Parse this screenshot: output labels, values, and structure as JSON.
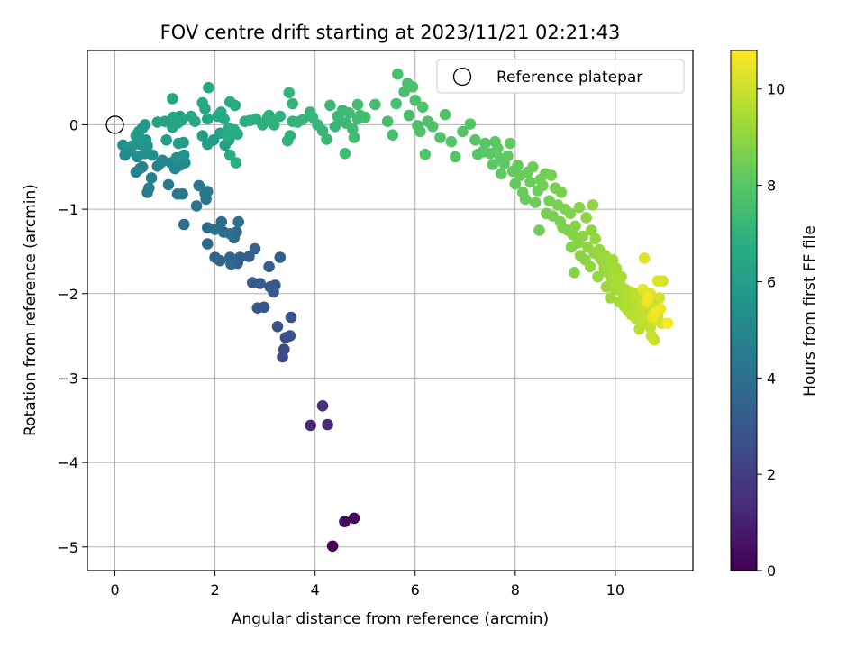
{
  "chart_data": {
    "type": "scatter",
    "title": "FOV centre drift starting at 2023/11/21 02:21:43",
    "xlabel": "Angular distance from reference (arcmin)",
    "ylabel": "Rotation from reference (arcmin)",
    "xlim": [
      -0.55,
      11.55
    ],
    "ylim": [
      -5.28,
      0.88
    ],
    "xticks": [
      0,
      2,
      4,
      6,
      8,
      10
    ],
    "yticks": [
      0,
      -1,
      -2,
      -3,
      -4,
      -5
    ],
    "grid": true,
    "colormap": "viridis",
    "colorbar": {
      "label": "Hours from first FF file",
      "range": [
        0,
        10.8
      ],
      "ticks": [
        0,
        2,
        4,
        6,
        8,
        10
      ]
    },
    "legend": {
      "position": "top-right",
      "entries": [
        {
          "label": "Reference platepar",
          "marker": "open-circle"
        }
      ]
    },
    "reference_point": {
      "x": 0,
      "y": 0
    },
    "points": [
      [
        4.35,
        -4.99,
        0.05
      ],
      [
        4.78,
        -4.66,
        0.15
      ],
      [
        4.59,
        -4.7,
        0.25
      ],
      [
        3.91,
        -3.56,
        1.25
      ],
      [
        4.25,
        -3.55,
        1.35
      ],
      [
        4.15,
        -3.33,
        1.45
      ],
      [
        3.35,
        -2.75,
        2.45
      ],
      [
        3.38,
        -2.66,
        2.55
      ],
      [
        3.41,
        -2.52,
        2.6
      ],
      [
        3.5,
        -2.5,
        2.65
      ],
      [
        3.25,
        -2.39,
        2.7
      ],
      [
        3.52,
        -2.28,
        2.75
      ],
      [
        2.85,
        -2.17,
        2.85
      ],
      [
        2.98,
        -2.16,
        2.9
      ],
      [
        3.17,
        -1.98,
        2.95
      ],
      [
        3.1,
        -1.92,
        3.0
      ],
      [
        3.2,
        -1.9,
        3.05
      ],
      [
        2.75,
        -1.87,
        3.1
      ],
      [
        2.9,
        -1.88,
        3.15
      ],
      [
        3.08,
        -1.68,
        3.2
      ],
      [
        3.3,
        -1.57,
        3.25
      ],
      [
        2.45,
        -1.64,
        3.3
      ],
      [
        2.5,
        -1.57,
        3.35
      ],
      [
        2.68,
        -1.56,
        3.4
      ],
      [
        2.8,
        -1.47,
        3.45
      ],
      [
        2.3,
        -1.57,
        3.5
      ],
      [
        2.1,
        -1.61,
        3.55
      ],
      [
        2.0,
        -1.57,
        3.58
      ],
      [
        2.32,
        -1.65,
        3.62
      ],
      [
        1.85,
        -1.41,
        3.65
      ],
      [
        2.38,
        -1.34,
        3.7
      ],
      [
        2.43,
        -1.27,
        3.75
      ],
      [
        2.17,
        -1.27,
        3.8
      ],
      [
        1.85,
        -1.22,
        3.85
      ],
      [
        2.13,
        -1.15,
        3.9
      ],
      [
        2.0,
        -1.24,
        3.95
      ],
      [
        2.47,
        -1.15,
        4.0
      ],
      [
        2.3,
        -1.29,
        4.05
      ],
      [
        1.38,
        -1.18,
        4.1
      ],
      [
        1.63,
        -0.96,
        4.15
      ],
      [
        1.82,
        -0.88,
        4.2
      ],
      [
        1.85,
        -0.79,
        4.25
      ],
      [
        1.68,
        -0.72,
        4.3
      ],
      [
        1.8,
        -0.81,
        4.35
      ],
      [
        1.25,
        -0.82,
        4.4
      ],
      [
        1.35,
        -0.82,
        4.45
      ],
      [
        1.07,
        -0.71,
        4.5
      ],
      [
        0.65,
        -0.8,
        4.55
      ],
      [
        0.68,
        -0.75,
        4.6
      ],
      [
        0.73,
        -0.63,
        4.65
      ],
      [
        0.55,
        -0.5,
        4.7
      ],
      [
        0.42,
        -0.56,
        4.75
      ],
      [
        0.5,
        -0.52,
        4.8
      ],
      [
        0.85,
        -0.49,
        4.85
      ],
      [
        0.92,
        -0.45,
        4.9
      ],
      [
        0.95,
        -0.42,
        4.95
      ],
      [
        1.12,
        -0.45,
        5.0
      ],
      [
        1.2,
        -0.52,
        5.05
      ],
      [
        1.3,
        -0.48,
        5.1
      ],
      [
        1.4,
        -0.45,
        5.15
      ],
      [
        0.2,
        -0.36,
        5.2
      ],
      [
        0.3,
        -0.31,
        5.25
      ],
      [
        0.45,
        -0.38,
        5.3
      ],
      [
        0.6,
        -0.34,
        5.35
      ],
      [
        0.75,
        -0.36,
        5.4
      ],
      [
        1.23,
        -0.39,
        5.45
      ],
      [
        1.38,
        -0.36,
        5.5
      ],
      [
        0.16,
        -0.24,
        5.55
      ],
      [
        0.35,
        -0.25,
        5.6
      ],
      [
        0.5,
        -0.23,
        5.65
      ],
      [
        0.65,
        -0.25,
        5.7
      ],
      [
        0.62,
        -0.18,
        5.75
      ],
      [
        0.42,
        -0.13,
        5.8
      ],
      [
        0.48,
        -0.08,
        5.82
      ],
      [
        0.55,
        -0.04,
        5.85
      ],
      [
        0.6,
        0.0,
        5.9
      ],
      [
        1.03,
        -0.18,
        5.95
      ],
      [
        1.37,
        -0.21,
        6.0
      ],
      [
        1.27,
        -0.22,
        6.05
      ],
      [
        1.85,
        -0.23,
        6.08
      ],
      [
        1.97,
        -0.18,
        6.1
      ],
      [
        1.75,
        -0.13,
        6.12
      ],
      [
        2.2,
        -0.24,
        6.15
      ],
      [
        2.28,
        -0.18,
        6.18
      ],
      [
        2.1,
        -0.1,
        6.2
      ],
      [
        0.85,
        0.03,
        6.22
      ],
      [
        1.0,
        0.04,
        6.25
      ],
      [
        1.15,
        -0.03,
        6.28
      ],
      [
        1.25,
        0.02,
        6.3
      ],
      [
        1.33,
        0.05,
        6.32
      ],
      [
        1.17,
        0.09,
        6.35
      ],
      [
        1.3,
        0.1,
        6.38
      ],
      [
        1.52,
        0.1,
        6.4
      ],
      [
        1.6,
        0.04,
        6.42
      ],
      [
        1.85,
        0.07,
        6.45
      ],
      [
        1.15,
        0.31,
        6.48
      ],
      [
        1.75,
        0.26,
        6.5
      ],
      [
        1.8,
        0.19,
        6.52
      ],
      [
        1.87,
        0.44,
        6.55
      ],
      [
        2.05,
        0.1,
        6.58
      ],
      [
        2.12,
        0.15,
        6.6
      ],
      [
        2.18,
        0.07,
        6.62
      ],
      [
        2.3,
        0.27,
        6.64
      ],
      [
        2.4,
        0.23,
        6.66
      ],
      [
        2.45,
        -0.11,
        6.68
      ],
      [
        2.35,
        -0.08,
        6.7
      ],
      [
        2.28,
        -0.04,
        6.72
      ],
      [
        2.25,
        -0.13,
        6.74
      ],
      [
        2.38,
        -0.06,
        6.76
      ],
      [
        2.42,
        -0.45,
        6.78
      ],
      [
        2.3,
        -0.36,
        6.8
      ],
      [
        2.6,
        0.04,
        6.82
      ],
      [
        2.7,
        0.05,
        6.84
      ],
      [
        2.82,
        0.07,
        6.86
      ],
      [
        2.95,
        0.0,
        6.88
      ],
      [
        3.05,
        0.08,
        6.9
      ],
      [
        3.12,
        0.04,
        6.92
      ],
      [
        3.18,
        0.0,
        6.94
      ],
      [
        3.08,
        0.11,
        6.96
      ],
      [
        3.3,
        0.1,
        6.98
      ],
      [
        3.45,
        -0.19,
        7.0
      ],
      [
        3.5,
        -0.13,
        7.02
      ],
      [
        3.55,
        0.04,
        7.04
      ],
      [
        3.48,
        0.38,
        7.06
      ],
      [
        3.55,
        0.25,
        7.08
      ],
      [
        3.65,
        0.03,
        7.1
      ],
      [
        3.75,
        0.06,
        7.12
      ],
      [
        3.9,
        0.15,
        7.14
      ],
      [
        3.95,
        0.09,
        7.16
      ],
      [
        4.05,
        0.0,
        7.18
      ],
      [
        4.15,
        -0.07,
        7.2
      ],
      [
        4.23,
        -0.17,
        7.22
      ],
      [
        4.4,
        -0.02,
        7.24
      ],
      [
        4.5,
        0.05,
        7.26
      ],
      [
        4.3,
        0.23,
        7.28
      ],
      [
        4.45,
        0.1,
        7.3
      ],
      [
        4.55,
        0.17,
        7.32
      ],
      [
        4.62,
        0.02,
        7.34
      ],
      [
        4.68,
        0.14,
        7.36
      ],
      [
        4.75,
        -0.05,
        7.38
      ],
      [
        4.85,
        0.07,
        7.4
      ],
      [
        4.9,
        0.11,
        7.42
      ],
      [
        4.6,
        -0.34,
        7.44
      ],
      [
        4.78,
        -0.15,
        7.46
      ],
      [
        5.2,
        0.24,
        7.48
      ],
      [
        5.0,
        0.09,
        7.5
      ],
      [
        4.85,
        0.24,
        7.52
      ],
      [
        5.45,
        0.04,
        7.54
      ],
      [
        5.55,
        -0.12,
        7.56
      ],
      [
        5.62,
        0.25,
        7.58
      ],
      [
        5.78,
        0.39,
        7.6
      ],
      [
        5.88,
        0.11,
        7.62
      ],
      [
        5.65,
        0.6,
        7.64
      ],
      [
        5.85,
        0.49,
        7.66
      ],
      [
        5.95,
        0.45,
        7.68
      ],
      [
        6.0,
        0.29,
        7.7
      ],
      [
        6.05,
        -0.01,
        7.72
      ],
      [
        6.15,
        0.21,
        7.74
      ],
      [
        6.1,
        -0.08,
        7.76
      ],
      [
        6.25,
        0.04,
        7.78
      ],
      [
        6.35,
        -0.02,
        7.8
      ],
      [
        6.2,
        -0.35,
        7.82
      ],
      [
        6.5,
        -0.15,
        7.84
      ],
      [
        6.6,
        0.12,
        7.86
      ],
      [
        6.72,
        -0.2,
        7.88
      ],
      [
        6.8,
        -0.38,
        7.9
      ],
      [
        6.95,
        -0.08,
        7.92
      ],
      [
        7.1,
        0.01,
        7.94
      ],
      [
        7.2,
        -0.18,
        7.96
      ],
      [
        7.25,
        -0.35,
        7.98
      ],
      [
        7.35,
        -0.32,
        8.0
      ],
      [
        7.4,
        -0.22,
        8.02
      ],
      [
        7.5,
        -0.34,
        8.04
      ],
      [
        7.55,
        -0.47,
        8.06
      ],
      [
        7.6,
        -0.2,
        8.08
      ],
      [
        7.65,
        -0.28,
        8.1
      ],
      [
        7.7,
        -0.4,
        8.12
      ],
      [
        7.72,
        -0.58,
        8.14
      ],
      [
        7.78,
        -0.46,
        8.16
      ],
      [
        7.85,
        -0.37,
        8.18
      ],
      [
        7.9,
        -0.22,
        8.2
      ],
      [
        7.95,
        -0.55,
        8.22
      ],
      [
        8.0,
        -0.7,
        8.24
      ],
      [
        8.05,
        -0.48,
        8.26
      ],
      [
        8.1,
        -0.6,
        8.28
      ],
      [
        8.15,
        -0.8,
        8.3
      ],
      [
        8.2,
        -0.88,
        8.32
      ],
      [
        8.25,
        -0.56,
        8.34
      ],
      [
        8.3,
        -0.68,
        8.36
      ],
      [
        8.35,
        -0.5,
        8.38
      ],
      [
        8.4,
        -0.92,
        8.4
      ],
      [
        8.45,
        -0.78,
        8.42
      ],
      [
        8.48,
        -1.25,
        8.44
      ],
      [
        8.5,
        -0.65,
        8.46
      ],
      [
        8.55,
        -0.72,
        8.48
      ],
      [
        8.6,
        -0.58,
        8.5
      ],
      [
        8.62,
        -1.05,
        8.52
      ],
      [
        8.68,
        -0.9,
        8.54
      ],
      [
        8.72,
        -0.6,
        8.56
      ],
      [
        8.75,
        -1.08,
        8.58
      ],
      [
        8.8,
        -0.75,
        8.6
      ],
      [
        8.85,
        -0.95,
        8.62
      ],
      [
        8.9,
        -1.15,
        8.64
      ],
      [
        8.92,
        -0.8,
        8.66
      ],
      [
        8.95,
        -1.22,
        8.68
      ],
      [
        9.0,
        -1.0,
        8.7
      ],
      [
        9.05,
        -1.25,
        8.72
      ],
      [
        9.1,
        -1.05,
        8.74
      ],
      [
        9.12,
        -1.45,
        8.76
      ],
      [
        9.15,
        -1.3,
        8.78
      ],
      [
        9.18,
        -1.75,
        8.8
      ],
      [
        9.2,
        -1.2,
        8.82
      ],
      [
        9.25,
        -1.4,
        8.84
      ],
      [
        9.28,
        -0.98,
        8.86
      ],
      [
        9.3,
        -1.55,
        8.88
      ],
      [
        9.35,
        -1.32,
        8.9
      ],
      [
        9.4,
        -1.6,
        8.92
      ],
      [
        9.42,
        -1.1,
        8.94
      ],
      [
        9.45,
        -1.45,
        8.96
      ],
      [
        9.5,
        -1.68,
        8.98
      ],
      [
        9.52,
        -1.25,
        9.0
      ],
      [
        9.55,
        -0.95,
        9.02
      ],
      [
        9.58,
        -1.52,
        9.04
      ],
      [
        9.6,
        -1.35,
        9.06
      ],
      [
        9.65,
        -1.8,
        9.08
      ],
      [
        9.68,
        -1.48,
        9.1
      ],
      [
        9.7,
        -1.58,
        9.12
      ],
      [
        9.75,
        -1.62,
        9.14
      ],
      [
        9.78,
        -1.7,
        9.16
      ],
      [
        9.8,
        -1.55,
        9.18
      ],
      [
        9.82,
        -1.92,
        9.2
      ],
      [
        9.85,
        -1.75,
        9.22
      ],
      [
        9.88,
        -1.68,
        9.24
      ],
      [
        9.9,
        -2.05,
        9.26
      ],
      [
        9.92,
        -1.82,
        9.28
      ],
      [
        9.95,
        -1.6,
        9.3
      ],
      [
        9.98,
        -1.78,
        9.32
      ],
      [
        10.0,
        -1.95,
        9.34
      ],
      [
        10.02,
        -1.7,
        9.36
      ],
      [
        10.05,
        -1.85,
        9.38
      ],
      [
        10.08,
        -2.1,
        9.4
      ],
      [
        10.1,
        -1.9,
        9.42
      ],
      [
        10.12,
        -1.8,
        9.44
      ],
      [
        10.15,
        -2.0,
        9.46
      ],
      [
        10.18,
        -2.15,
        9.48
      ],
      [
        10.2,
        -1.95,
        9.5
      ],
      [
        10.22,
        -2.05,
        9.52
      ],
      [
        10.25,
        -2.2,
        9.54
      ],
      [
        10.28,
        -2.1,
        9.56
      ],
      [
        10.3,
        -1.98,
        9.58
      ],
      [
        10.32,
        -2.25,
        9.6
      ],
      [
        10.35,
        -2.05,
        9.62
      ],
      [
        10.38,
        -2.15,
        9.64
      ],
      [
        10.4,
        -2.0,
        9.66
      ],
      [
        10.42,
        -2.3,
        9.68
      ],
      [
        10.45,
        -2.1,
        9.7
      ],
      [
        10.48,
        -2.42,
        9.72
      ],
      [
        10.5,
        -2.2,
        9.74
      ],
      [
        10.52,
        -2.05,
        9.76
      ],
      [
        10.55,
        -2.25,
        9.78
      ],
      [
        10.58,
        -2.12,
        9.8
      ],
      [
        10.6,
        -2.35,
        9.82
      ],
      [
        10.62,
        -2.18,
        9.84
      ],
      [
        10.65,
        -2.28,
        9.86
      ],
      [
        10.68,
        -2.08,
        9.88
      ],
      [
        10.7,
        -2.4,
        9.9
      ],
      [
        10.72,
        -2.5,
        9.92
      ],
      [
        10.75,
        -2.2,
        9.94
      ],
      [
        10.78,
        -2.55,
        9.96
      ],
      [
        10.8,
        -2.3,
        9.98
      ],
      [
        10.82,
        -2.12,
        10.0
      ],
      [
        10.85,
        -2.25,
        10.05
      ],
      [
        10.88,
        -2.05,
        10.1
      ],
      [
        10.92,
        -2.35,
        10.15
      ],
      [
        10.95,
        -1.85,
        10.2
      ],
      [
        10.58,
        -1.58,
        10.25
      ],
      [
        10.85,
        -1.85,
        10.3
      ],
      [
        10.7,
        -2.0,
        10.35
      ],
      [
        10.55,
        -1.95,
        10.4
      ],
      [
        10.62,
        -2.1,
        10.45
      ],
      [
        10.9,
        -2.18,
        10.5
      ],
      [
        10.75,
        -2.28,
        10.55
      ],
      [
        10.65,
        -2.05,
        10.6
      ],
      [
        10.8,
        -2.22,
        10.65
      ],
      [
        11.05,
        -2.35,
        10.75
      ]
    ]
  }
}
